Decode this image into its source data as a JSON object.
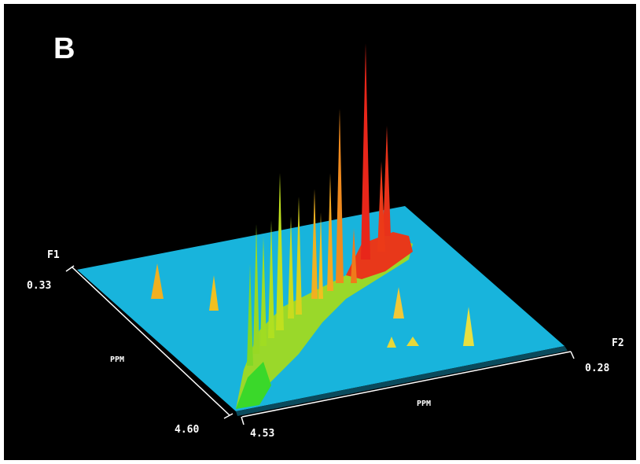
{
  "panel_label": "B",
  "axes": {
    "f1": {
      "name": "F1",
      "unit": "PPM",
      "start": "0.33",
      "end": "4.60"
    },
    "f2": {
      "name": "F2",
      "unit": "PPM",
      "start": "4.53",
      "end": "0.28"
    }
  }
}
